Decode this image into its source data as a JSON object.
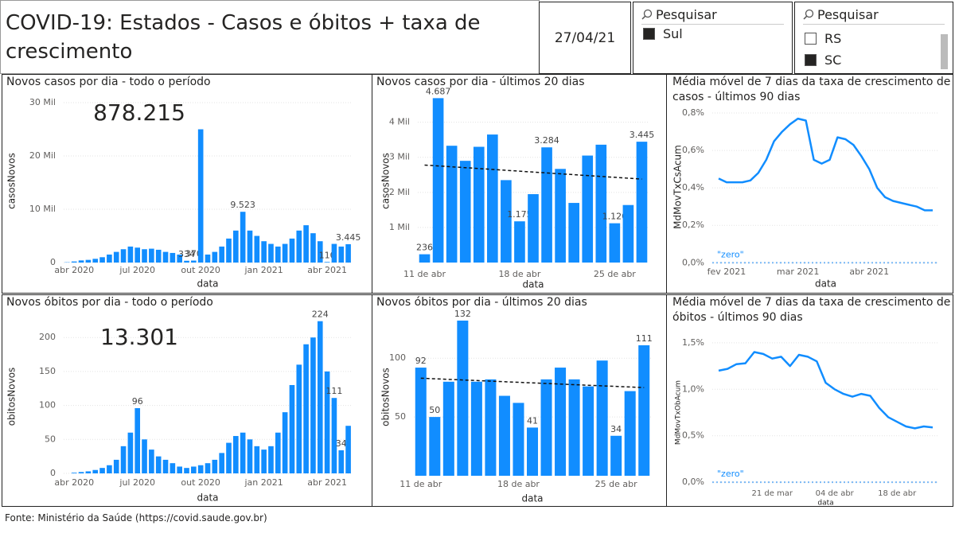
{
  "header": {
    "title": "COVID-19: Estados - Casos e óbitos + taxa de crescimento",
    "date": "27/04/21",
    "slicers": [
      {
        "search": "Pesquisar",
        "items": [
          {
            "label": "Sul",
            "checked": true
          }
        ]
      },
      {
        "search": "Pesquisar",
        "items": [
          {
            "label": "RS",
            "checked": false
          },
          {
            "label": "SC",
            "checked": true
          }
        ]
      }
    ]
  },
  "chart_data": [
    {
      "type": "bar",
      "title": "Novos casos por dia - todo o período",
      "total": "878.215",
      "x_label": "data",
      "y_label": "casosNovos",
      "color": "#118dff",
      "categories": [
        null,
        "abr 2020",
        null,
        null,
        null,
        null,
        null,
        null,
        null,
        null,
        "jul 2020",
        null,
        null,
        null,
        null,
        null,
        null,
        null,
        null,
        "out 2020",
        null,
        null,
        null,
        null,
        null,
        null,
        null,
        null,
        "jan 2021",
        null,
        null,
        null,
        null,
        null,
        null,
        null,
        null,
        "abr 2021",
        null,
        null,
        null
      ],
      "values": [
        50,
        200,
        400,
        500,
        700,
        1000,
        1500,
        2000,
        2500,
        3000,
        2800,
        2500,
        2600,
        2400,
        2000,
        1800,
        1500,
        334,
        370,
        25000,
        1500,
        2000,
        3000,
        4500,
        6000,
        9523,
        6000,
        5000,
        4000,
        3500,
        3000,
        3500,
        4500,
        6000,
        7000,
        5500,
        4000,
        110,
        3500,
        3000,
        3445
      ],
      "value_labels": [
        null,
        null,
        null,
        null,
        null,
        null,
        null,
        null,
        null,
        null,
        null,
        null,
        null,
        null,
        null,
        null,
        null,
        "334",
        "370",
        null,
        null,
        null,
        null,
        null,
        null,
        "9.523",
        null,
        null,
        null,
        null,
        null,
        null,
        null,
        null,
        null,
        null,
        null,
        "110",
        null,
        null,
        "3.445"
      ],
      "ylim": [
        0,
        30600
      ],
      "yticks": [
        0,
        {
          "value": 10000,
          "label": "10 Mil"
        },
        {
          "value": 20000,
          "label": "20 Mil"
        },
        {
          "value": 30000,
          "label": "30 Mil"
        }
      ],
      "grid": true
    },
    {
      "type": "bar",
      "title": "Novos casos por dia - últimos 20 dias",
      "x_label": "data",
      "y_label": "casosNovos",
      "color": "#118dff",
      "categories": [
        "11 de abr",
        null,
        null,
        null,
        null,
        null,
        null,
        "18 de abr",
        null,
        null,
        null,
        null,
        null,
        null,
        "25 de abr",
        null,
        null
      ],
      "values": [
        236,
        4687,
        3330,
        2900,
        3300,
        3650,
        2350,
        1175,
        1950,
        3284,
        2670,
        1700,
        3050,
        3360,
        1120,
        1640,
        3445
      ],
      "value_labels": [
        "236",
        "4.687",
        null,
        null,
        null,
        null,
        null,
        "1.175",
        null,
        "3.284",
        null,
        null,
        null,
        null,
        "1.120",
        null,
        "3.445"
      ],
      "trend_line": [
        2780,
        2380
      ],
      "ylim": [
        0,
        4650
      ],
      "yticks": [
        {
          "value": 1000,
          "label": "1 Mil"
        },
        {
          "value": 2000,
          "label": "2 Mil"
        },
        {
          "value": 3000,
          "label": "3 Mil"
        },
        {
          "value": 4000,
          "label": "4 Mil"
        }
      ],
      "grid": true
    },
    {
      "type": "line",
      "title": "Média móvel de 7 dias da taxa de crescimento de casos - últimos 90 dias",
      "x_label": "data",
      "y_label": "MdMovTxCsAcum",
      "color": "#118dff",
      "categories": [
        null,
        "fev 2021",
        null,
        null,
        null,
        null,
        null,
        null,
        null,
        null,
        "mar 2021",
        null,
        null,
        null,
        null,
        null,
        null,
        null,
        null,
        "abr 2021",
        null,
        null,
        null,
        null,
        null,
        null,
        null,
        null
      ],
      "values": [
        0.45,
        0.43,
        0.43,
        0.43,
        0.44,
        0.48,
        0.55,
        0.65,
        0.7,
        0.74,
        0.77,
        0.76,
        0.55,
        0.53,
        0.55,
        0.67,
        0.66,
        0.63,
        0.57,
        0.5,
        0.4,
        0.35,
        0.33,
        0.32,
        0.31,
        0.3,
        0.28,
        0.28
      ],
      "annotation": {
        "label": "\"zero\"",
        "value": 0
      },
      "ylim": [
        -0.02,
        0.83
      ],
      "yticks": [
        {
          "value": 0,
          "label": "0,0%"
        },
        {
          "value": 0.2,
          "label": "0,2%"
        },
        {
          "value": 0.4,
          "label": "0,4%"
        },
        {
          "value": 0.6,
          "label": "0,6%"
        },
        {
          "value": 0.8,
          "label": "0,8%"
        }
      ],
      "grid": true
    },
    {
      "type": "bar",
      "title": "Novos óbitos por dia - todo o período",
      "total": "13.301",
      "x_label": "data",
      "y_label": "obitosNovos",
      "color": "#118dff",
      "categories": [
        null,
        "abr 2020",
        null,
        null,
        null,
        null,
        null,
        null,
        null,
        null,
        "jul 2020",
        null,
        null,
        null,
        null,
        null,
        null,
        null,
        null,
        "out 2020",
        null,
        null,
        null,
        null,
        null,
        null,
        null,
        null,
        "jan 2021",
        null,
        null,
        null,
        null,
        null,
        null,
        null,
        null,
        "abr 2021",
        null,
        null,
        null
      ],
      "values": [
        0,
        1,
        2,
        3,
        5,
        8,
        12,
        20,
        40,
        60,
        96,
        50,
        35,
        25,
        20,
        15,
        10,
        8,
        10,
        12,
        15,
        20,
        30,
        45,
        55,
        60,
        50,
        40,
        35,
        40,
        60,
        90,
        130,
        160,
        190,
        200,
        224,
        150,
        111,
        34,
        70
      ],
      "value_labels": [
        null,
        null,
        null,
        null,
        null,
        null,
        null,
        null,
        null,
        null,
        "96",
        null,
        null,
        null,
        null,
        null,
        null,
        null,
        null,
        null,
        null,
        null,
        null,
        null,
        null,
        null,
        null,
        null,
        null,
        null,
        null,
        null,
        null,
        null,
        null,
        null,
        "224",
        null,
        "111",
        "34",
        null
      ],
      "ylim": [
        0,
        226
      ],
      "yticks": [
        0,
        50,
        100,
        150,
        200
      ],
      "grid": true
    },
    {
      "type": "bar",
      "title": "Novos óbitos por dia - últimos 20 dias",
      "x_label": "data",
      "y_label": "obitosNovos",
      "color": "#118dff",
      "categories": [
        "11 de abr",
        null,
        null,
        null,
        null,
        null,
        null,
        "18 de abr",
        null,
        null,
        null,
        null,
        null,
        null,
        "25 de abr",
        null,
        null
      ],
      "values": [
        92,
        50,
        80,
        132,
        80,
        82,
        68,
        62,
        41,
        82,
        92,
        82,
        76,
        98,
        34,
        72,
        111
      ],
      "value_labels": [
        "92",
        "50",
        null,
        "132",
        null,
        null,
        null,
        null,
        "41",
        null,
        null,
        null,
        null,
        null,
        "34",
        null,
        "111"
      ],
      "trend_line": [
        83,
        75
      ],
      "ylim": [
        0,
        134
      ],
      "yticks": [
        50,
        100
      ],
      "grid": true
    },
    {
      "type": "line",
      "title": "Média móvel de 7 dias da taxa de crescimento de óbitos - últimos 90 dias",
      "x_label": "data",
      "y_label": "MdMovTxObAcum",
      "color": "#118dff",
      "categories": [
        null,
        null,
        null,
        null,
        null,
        null,
        "21 de mar",
        null,
        null,
        null,
        null,
        null,
        null,
        "04 de abr",
        null,
        null,
        null,
        null,
        null,
        null,
        "18 de abr",
        null,
        null,
        null,
        null
      ],
      "values": [
        1.2,
        1.22,
        1.27,
        1.28,
        1.4,
        1.38,
        1.33,
        1.35,
        1.25,
        1.37,
        1.35,
        1.3,
        1.07,
        1.0,
        0.95,
        0.92,
        0.95,
        0.93,
        0.8,
        0.7,
        0.65,
        0.6,
        0.58,
        0.6,
        0.59
      ],
      "annotation": {
        "label": "\"zero\"",
        "value": 0
      },
      "ylim": [
        -0.05,
        1.55
      ],
      "yticks": [
        {
          "value": 0,
          "label": "0,0%"
        },
        {
          "value": 0.5,
          "label": "0,5%"
        },
        {
          "value": 1,
          "label": "1,0%"
        },
        {
          "value": 1.5,
          "label": "1,5%"
        }
      ],
      "grid": true
    }
  ],
  "footer": "Fonte: Ministério da Saúde (https://covid.saude.gov.br)"
}
